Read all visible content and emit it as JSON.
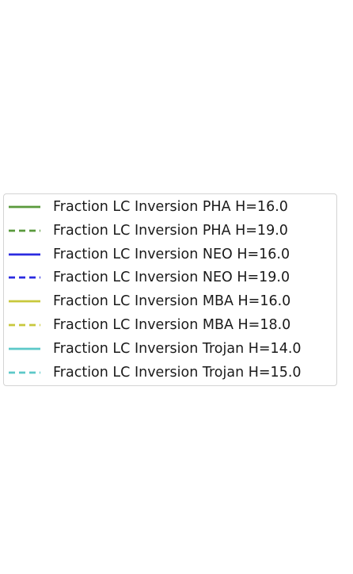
{
  "chart_data": {
    "type": "line",
    "title": "",
    "xlabel": "",
    "ylabel": "",
    "legend_placement": "center",
    "series": [
      {
        "name": "Fraction LC Inversion PHA H=16.0",
        "color": "#5a9a3c",
        "linestyle": "solid",
        "values": []
      },
      {
        "name": "Fraction LC Inversion PHA H=19.0",
        "color": "#5a9a3c",
        "linestyle": "dashed",
        "values": []
      },
      {
        "name": "Fraction LC Inversion NEO H=16.0",
        "color": "#2a2ae0",
        "linestyle": "solid",
        "values": []
      },
      {
        "name": "Fraction LC Inversion NEO H=19.0",
        "color": "#2a2ae0",
        "linestyle": "dashed",
        "values": []
      },
      {
        "name": "Fraction LC Inversion MBA H=16.0",
        "color": "#c8c83c",
        "linestyle": "solid",
        "values": []
      },
      {
        "name": "Fraction LC Inversion MBA H=18.0",
        "color": "#c8c83c",
        "linestyle": "dashed",
        "values": []
      },
      {
        "name": "Fraction LC Inversion Trojan H=14.0",
        "color": "#5cc8c8",
        "linestyle": "solid",
        "values": []
      },
      {
        "name": "Fraction LC Inversion Trojan H=15.0",
        "color": "#5cc8c8",
        "linestyle": "dashed",
        "values": []
      }
    ]
  }
}
